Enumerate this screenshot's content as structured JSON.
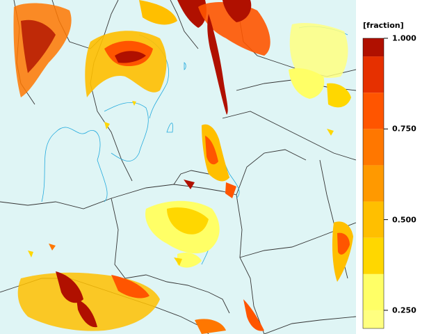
{
  "legend": {
    "unit_label": "[fraction]",
    "ticks": [
      {
        "value": 1.0,
        "label": "1.000"
      },
      {
        "value": 0.75,
        "label": "0.750"
      },
      {
        "value": 0.5,
        "label": "0.500"
      },
      {
        "value": 0.25,
        "label": "0.250"
      }
    ],
    "bins": [
      {
        "from": 0.2,
        "to": 0.25,
        "color": "#ffff80"
      },
      {
        "from": 0.25,
        "to": 0.35,
        "color": "#ffff66"
      },
      {
        "from": 0.35,
        "to": 0.45,
        "color": "#ffd700"
      },
      {
        "from": 0.45,
        "to": 0.55,
        "color": "#ffbf00"
      },
      {
        "from": 0.55,
        "to": 0.65,
        "color": "#ff9900"
      },
      {
        "from": 0.65,
        "to": 0.75,
        "color": "#ff7700"
      },
      {
        "from": 0.75,
        "to": 0.85,
        "color": "#ff5500"
      },
      {
        "from": 0.85,
        "to": 0.95,
        "color": "#e63000"
      },
      {
        "from": 0.95,
        "to": 1.0,
        "color": "#b01000"
      }
    ]
  },
  "colors": {
    "background": "#dff5f5",
    "contour": "#22aadd",
    "border": "#333333"
  }
}
